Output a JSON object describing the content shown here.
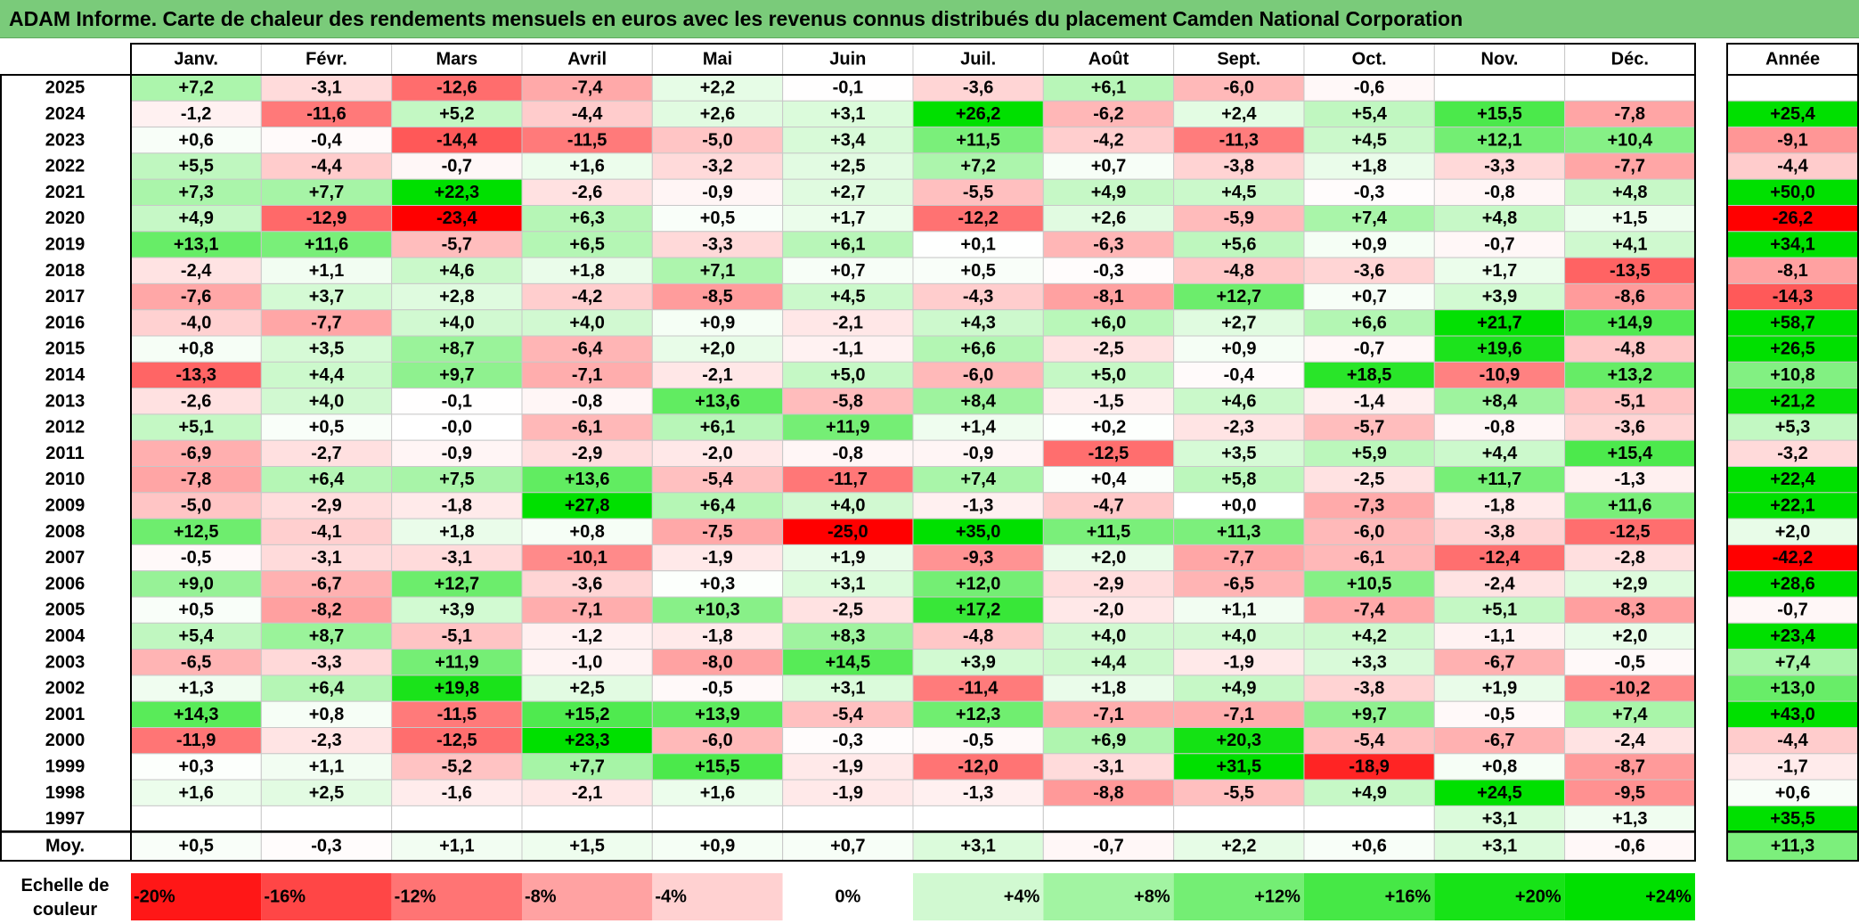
{
  "title": "ADAM Informe. Carte de chaleur des rendements mensuels en euros avec les revenus connus distribués du placement Camden National Corporation",
  "chart_data": {
    "type": "heatmap",
    "columns": [
      "Janv.",
      "Févr.",
      "Mars",
      "Avril",
      "Mai",
      "Juin",
      "Juil.",
      "Août",
      "Sept.",
      "Oct.",
      "Nov.",
      "Déc."
    ],
    "year_header": "Année",
    "rows": [
      {
        "year": "2025",
        "values": [
          "+7,2",
          "-3,1",
          "-12,6",
          "-7,4",
          "+2,2",
          "-0,1",
          "-3,6",
          "+6,1",
          "-6,0",
          "-0,6",
          "",
          ""
        ],
        "annual": ""
      },
      {
        "year": "2024",
        "values": [
          "-1,2",
          "-11,6",
          "+5,2",
          "-4,4",
          "+2,6",
          "+3,1",
          "+26,2",
          "-6,2",
          "+2,4",
          "+5,4",
          "+15,5",
          "-7,8"
        ],
        "annual": "+25,4"
      },
      {
        "year": "2023",
        "values": [
          "+0,6",
          "-0,4",
          "-14,4",
          "-11,5",
          "-5,0",
          "+3,4",
          "+11,5",
          "-4,2",
          "-11,3",
          "+4,5",
          "+12,1",
          "+10,4"
        ],
        "annual": "-9,1"
      },
      {
        "year": "2022",
        "values": [
          "+5,5",
          "-4,4",
          "-0,7",
          "+1,6",
          "-3,2",
          "+2,5",
          "+7,2",
          "+0,7",
          "-3,8",
          "+1,8",
          "-3,3",
          "-7,7"
        ],
        "annual": "-4,4"
      },
      {
        "year": "2021",
        "values": [
          "+7,3",
          "+7,7",
          "+22,3",
          "-2,6",
          "-0,9",
          "+2,7",
          "-5,5",
          "+4,9",
          "+4,5",
          "-0,3",
          "-0,8",
          "+4,8"
        ],
        "annual": "+50,0"
      },
      {
        "year": "2020",
        "values": [
          "+4,9",
          "-12,9",
          "-23,4",
          "+6,3",
          "+0,5",
          "+1,7",
          "-12,2",
          "+2,6",
          "-5,9",
          "+7,4",
          "+4,8",
          "+1,5"
        ],
        "annual": "-26,2"
      },
      {
        "year": "2019",
        "values": [
          "+13,1",
          "+11,6",
          "-5,7",
          "+6,5",
          "-3,3",
          "+6,1",
          "+0,1",
          "-6,3",
          "+5,6",
          "+0,9",
          "-0,7",
          "+4,1"
        ],
        "annual": "+34,1"
      },
      {
        "year": "2018",
        "values": [
          "-2,4",
          "+1,1",
          "+4,6",
          "+1,8",
          "+7,1",
          "+0,7",
          "+0,5",
          "-0,3",
          "-4,8",
          "-3,6",
          "+1,7",
          "-13,5"
        ],
        "annual": "-8,1"
      },
      {
        "year": "2017",
        "values": [
          "-7,6",
          "+3,7",
          "+2,8",
          "-4,2",
          "-8,5",
          "+4,5",
          "-4,3",
          "-8,1",
          "+12,7",
          "+0,7",
          "+3,9",
          "-8,6"
        ],
        "annual": "-14,3"
      },
      {
        "year": "2016",
        "values": [
          "-4,0",
          "-7,7",
          "+4,0",
          "+4,0",
          "+0,9",
          "-2,1",
          "+4,3",
          "+6,0",
          "+2,7",
          "+6,6",
          "+21,7",
          "+14,9"
        ],
        "annual": "+58,7"
      },
      {
        "year": "2015",
        "values": [
          "+0,8",
          "+3,5",
          "+8,7",
          "-6,4",
          "+2,0",
          "-1,1",
          "+6,6",
          "-2,5",
          "+0,9",
          "-0,7",
          "+19,6",
          "-4,8"
        ],
        "annual": "+26,5"
      },
      {
        "year": "2014",
        "values": [
          "-13,3",
          "+4,4",
          "+9,7",
          "-7,1",
          "-2,1",
          "+5,0",
          "-6,0",
          "+5,0",
          "-0,4",
          "+18,5",
          "-10,9",
          "+13,2"
        ],
        "annual": "+10,8"
      },
      {
        "year": "2013",
        "values": [
          "-2,6",
          "+4,0",
          "-0,1",
          "-0,8",
          "+13,6",
          "-5,8",
          "+8,4",
          "-1,5",
          "+4,6",
          "-1,4",
          "+8,4",
          "-5,1"
        ],
        "annual": "+21,2"
      },
      {
        "year": "2012",
        "values": [
          "+5,1",
          "+0,5",
          "-0,0",
          "-6,1",
          "+6,1",
          "+11,9",
          "+1,4",
          "+0,2",
          "-2,3",
          "-5,7",
          "-0,8",
          "-3,6"
        ],
        "annual": "+5,3"
      },
      {
        "year": "2011",
        "values": [
          "-6,9",
          "-2,7",
          "-0,9",
          "-2,9",
          "-2,0",
          "-0,8",
          "-0,9",
          "-12,5",
          "+3,5",
          "+5,9",
          "+4,4",
          "+15,4"
        ],
        "annual": "-3,2"
      },
      {
        "year": "2010",
        "values": [
          "-7,8",
          "+6,4",
          "+7,5",
          "+13,6",
          "-5,4",
          "-11,7",
          "+7,4",
          "+0,4",
          "+5,8",
          "-2,5",
          "+11,7",
          "-1,3"
        ],
        "annual": "+22,4"
      },
      {
        "year": "2009",
        "values": [
          "-5,0",
          "-2,9",
          "-1,8",
          "+27,8",
          "+6,4",
          "+4,0",
          "-1,3",
          "-4,7",
          "+0,0",
          "-7,3",
          "-1,8",
          "+11,6"
        ],
        "annual": "+22,1"
      },
      {
        "year": "2008",
        "values": [
          "+12,5",
          "-4,1",
          "+1,8",
          "+0,8",
          "-7,5",
          "-25,0",
          "+35,0",
          "+11,5",
          "+11,3",
          "-6,0",
          "-3,8",
          "-12,5"
        ],
        "annual": "+2,0"
      },
      {
        "year": "2007",
        "values": [
          "-0,5",
          "-3,1",
          "-3,1",
          "-10,1",
          "-1,9",
          "+1,9",
          "-9,3",
          "+2,0",
          "-7,7",
          "-6,1",
          "-12,4",
          "-2,8"
        ],
        "annual": "-42,2"
      },
      {
        "year": "2006",
        "values": [
          "+9,0",
          "-6,7",
          "+12,7",
          "-3,6",
          "+0,3",
          "+3,1",
          "+12,0",
          "-2,9",
          "-6,5",
          "+10,5",
          "-2,4",
          "+2,9"
        ],
        "annual": "+28,6"
      },
      {
        "year": "2005",
        "values": [
          "+0,5",
          "-8,2",
          "+3,9",
          "-7,1",
          "+10,3",
          "-2,5",
          "+17,2",
          "-2,0",
          "+1,1",
          "-7,4",
          "+5,1",
          "-8,3"
        ],
        "annual": "-0,7"
      },
      {
        "year": "2004",
        "values": [
          "+5,4",
          "+8,7",
          "-5,1",
          "-1,2",
          "-1,8",
          "+8,3",
          "-4,8",
          "+4,0",
          "+4,0",
          "+4,2",
          "-1,1",
          "+2,0"
        ],
        "annual": "+23,4"
      },
      {
        "year": "2003",
        "values": [
          "-6,5",
          "-3,3",
          "+11,9",
          "-1,0",
          "-8,0",
          "+14,5",
          "+3,9",
          "+4,4",
          "-1,9",
          "+3,3",
          "-6,7",
          "-0,5"
        ],
        "annual": "+7,4"
      },
      {
        "year": "2002",
        "values": [
          "+1,3",
          "+6,4",
          "+19,8",
          "+2,5",
          "-0,5",
          "+3,1",
          "-11,4",
          "+1,8",
          "+4,9",
          "-3,8",
          "+1,9",
          "-10,2"
        ],
        "annual": "+13,0"
      },
      {
        "year": "2001",
        "values": [
          "+14,3",
          "+0,8",
          "-11,5",
          "+15,2",
          "+13,9",
          "-5,4",
          "+12,3",
          "-7,1",
          "-7,1",
          "+9,7",
          "-0,5",
          "+7,4"
        ],
        "annual": "+43,0"
      },
      {
        "year": "2000",
        "values": [
          "-11,9",
          "-2,3",
          "-12,5",
          "+23,3",
          "-6,0",
          "-0,3",
          "-0,5",
          "+6,9",
          "+20,3",
          "-5,4",
          "-6,7",
          "-2,4"
        ],
        "annual": "-4,4"
      },
      {
        "year": "1999",
        "values": [
          "+0,3",
          "+1,1",
          "-5,2",
          "+7,7",
          "+15,5",
          "-1,9",
          "-12,0",
          "-3,1",
          "+31,5",
          "-18,9",
          "+0,8",
          "-8,7"
        ],
        "annual": "-1,7"
      },
      {
        "year": "1998",
        "values": [
          "+1,6",
          "+2,5",
          "-1,6",
          "-2,1",
          "+1,6",
          "-1,9",
          "-1,3",
          "-8,8",
          "-5,5",
          "+4,9",
          "+24,5",
          "-9,5"
        ],
        "annual": "+0,6"
      },
      {
        "year": "1997",
        "values": [
          "",
          "",
          "",
          "",
          "",
          "",
          "",
          "",
          "",
          "",
          "+3,1",
          "+1,3"
        ],
        "annual": "+35,5"
      }
    ],
    "average": {
      "label": "Moy.",
      "values": [
        "+0,5",
        "-0,3",
        "+1,1",
        "+1,5",
        "+0,9",
        "+0,7",
        "+3,1",
        "-0,7",
        "+2,2",
        "+0,6",
        "+3,1",
        "-0,6"
      ],
      "annual": "+11,3"
    },
    "scale": {
      "label_line1": "Echelle de",
      "label_line2": "couleur",
      "entries": [
        {
          "label": "-20%",
          "value": -20,
          "align": "left"
        },
        {
          "label": "-16%",
          "value": -16,
          "align": "left"
        },
        {
          "label": "-12%",
          "value": -12,
          "align": "left"
        },
        {
          "label": "-8%",
          "value": -8,
          "align": "left"
        },
        {
          "label": "-4%",
          "value": -4,
          "align": "left"
        },
        {
          "label": "0%",
          "value": 0,
          "align": "center"
        },
        {
          "label": "+4%",
          "value": 4,
          "align": "right"
        },
        {
          "label": "+8%",
          "value": 8,
          "align": "right"
        },
        {
          "label": "+12%",
          "value": 12,
          "align": "right"
        },
        {
          "label": "+16%",
          "value": 16,
          "align": "right"
        },
        {
          "label": "+20%",
          "value": 20,
          "align": "right"
        },
        {
          "label": "+24%",
          "value": 24,
          "align": "right"
        }
      ]
    },
    "colors": {
      "negative": "#ff0000",
      "positive": "#00e000",
      "neutral": "#ffffff",
      "title_bg": "#7acb7a"
    }
  }
}
